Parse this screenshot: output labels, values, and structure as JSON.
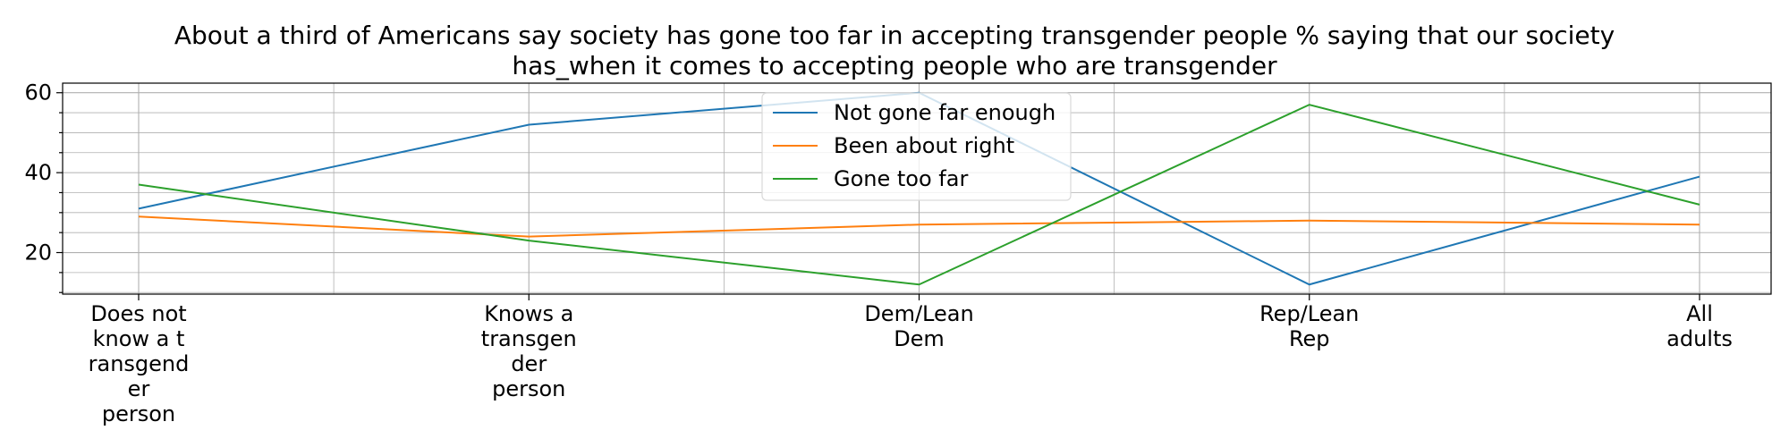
{
  "chart_data": {
    "type": "line",
    "title_lines": [
      "About a third of Americans say society has gone too far in accepting transgender people % saying that our society",
      "has_when it comes to accepting people who are transgender"
    ],
    "categories": [
      [
        "Does not",
        "know a t",
        "ransgend",
        "er",
        "person"
      ],
      [
        "Knows a",
        "transgen",
        "der",
        "person"
      ],
      [
        "Dem/Lean",
        "Dem"
      ],
      [
        "Rep/Lean",
        "Rep"
      ],
      [
        "All",
        "adults"
      ]
    ],
    "series": [
      {
        "name": "Not gone far enough",
        "color": "#1f77b4",
        "values": [
          31,
          52,
          60,
          12,
          39
        ]
      },
      {
        "name": "Been about right",
        "color": "#ff7f0e",
        "values": [
          29,
          24,
          27,
          28,
          27
        ]
      },
      {
        "name": "Gone too far",
        "color": "#2ca02c",
        "values": [
          37,
          23,
          12,
          57,
          32
        ]
      }
    ],
    "ylim": [
      9.6,
      62.4
    ],
    "yticks": [
      20,
      40,
      60
    ],
    "grid": true,
    "legend_position": "upper-center"
  }
}
